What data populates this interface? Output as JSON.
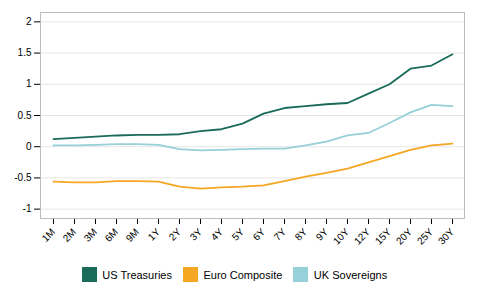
{
  "chart_data": {
    "type": "line",
    "categories": [
      "1M",
      "2M",
      "3M",
      "6M",
      "9M",
      "1Y",
      "2Y",
      "3Y",
      "4Y",
      "5Y",
      "6Y",
      "7Y",
      "8Y",
      "9Y",
      "10Y",
      "12Y",
      "15Y",
      "20Y",
      "25Y",
      "30Y"
    ],
    "series": [
      {
        "name": "US Treasuries",
        "color": "#1a6b5a",
        "values": [
          0.12,
          0.14,
          0.16,
          0.18,
          0.19,
          0.19,
          0.2,
          0.25,
          0.28,
          0.37,
          0.53,
          0.62,
          0.65,
          0.68,
          0.7,
          0.85,
          1.0,
          1.25,
          1.3,
          1.48
        ]
      },
      {
        "name": "Euro Composite",
        "color": "#f5a623",
        "values": [
          -0.56,
          -0.57,
          -0.57,
          -0.55,
          -0.55,
          -0.56,
          -0.64,
          -0.67,
          -0.65,
          -0.64,
          -0.62,
          -0.55,
          -0.48,
          -0.42,
          -0.35,
          -0.25,
          -0.15,
          -0.05,
          0.02,
          0.05
        ]
      },
      {
        "name": "UK Sovereigns",
        "color": "#96d0d8",
        "values": [
          0.02,
          0.02,
          0.03,
          0.04,
          0.04,
          0.03,
          -0.04,
          -0.06,
          -0.05,
          -0.04,
          -0.03,
          -0.03,
          0.02,
          0.08,
          0.18,
          0.22,
          0.38,
          0.55,
          0.67,
          0.65
        ]
      }
    ],
    "ylim": [
      -1.15,
      2.15
    ],
    "yticks": [
      -1,
      -0.5,
      0,
      0.5,
      1,
      1.5,
      2
    ],
    "grid": true,
    "legend": "bottom"
  }
}
